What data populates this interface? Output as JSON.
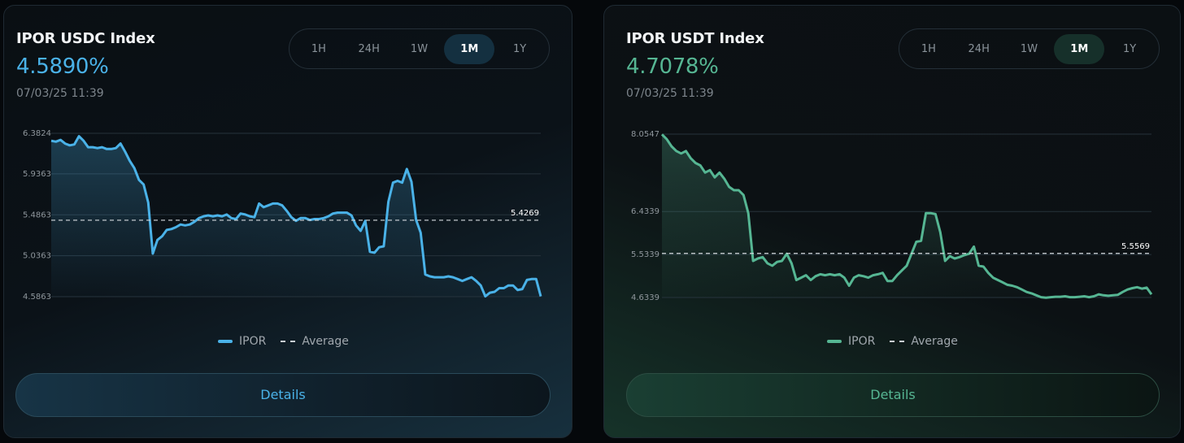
{
  "cards": [
    {
      "title": "IPOR USDC Index",
      "rate": "4.5890%",
      "timestamp": "07/03/25 11:39",
      "tabs": [
        "1H",
        "24H",
        "1W",
        "1M",
        "1Y"
      ],
      "active_tab": "1M",
      "legend": {
        "series": "IPOR",
        "average": "Average"
      },
      "details_label": "Details",
      "color": "#4ab2e8"
    },
    {
      "title": "IPOR USDT Index",
      "rate": "4.7078%",
      "timestamp": "07/03/25 11:39",
      "tabs": [
        "1H",
        "24H",
        "1W",
        "1M",
        "1Y"
      ],
      "active_tab": "1M",
      "legend": {
        "series": "IPOR",
        "average": "Average"
      },
      "details_label": "Details",
      "color": "#56b693"
    }
  ],
  "chart_data": [
    {
      "type": "line",
      "title": "IPOR USDC Index",
      "ylim": [
        4.5863,
        6.3824
      ],
      "yticks": [
        "6.3824",
        "5.9363",
        "5.4863",
        "5.0363",
        "4.5863"
      ],
      "average": 5.4269,
      "average_label": "5.4269",
      "series": [
        {
          "name": "IPOR",
          "color": "#4ab2e8",
          "values": [
            6.3,
            6.29,
            6.31,
            6.27,
            6.25,
            6.26,
            6.35,
            6.3,
            6.23,
            6.23,
            6.22,
            6.23,
            6.21,
            6.21,
            6.22,
            6.27,
            6.18,
            6.08,
            6.0,
            5.87,
            5.82,
            5.62,
            5.06,
            5.21,
            5.25,
            5.32,
            5.33,
            5.35,
            5.38,
            5.37,
            5.38,
            5.41,
            5.45,
            5.47,
            5.48,
            5.47,
            5.48,
            5.47,
            5.49,
            5.45,
            5.44,
            5.5,
            5.49,
            5.47,
            5.46,
            5.61,
            5.57,
            5.59,
            5.61,
            5.61,
            5.59,
            5.53,
            5.46,
            5.42,
            5.45,
            5.45,
            5.43,
            5.44,
            5.44,
            5.45,
            5.47,
            5.5,
            5.51,
            5.51,
            5.51,
            5.48,
            5.37,
            5.31,
            5.42,
            5.08,
            5.07,
            5.13,
            5.14,
            5.63,
            5.84,
            5.86,
            5.84,
            5.99,
            5.85,
            5.43,
            5.29,
            4.83,
            4.81,
            4.8,
            4.8,
            4.8,
            4.81,
            4.8,
            4.78,
            4.76,
            4.78,
            4.8,
            4.76,
            4.71,
            4.59,
            4.63,
            4.64,
            4.68,
            4.68,
            4.71,
            4.71,
            4.66,
            4.67,
            4.77,
            4.78,
            4.78,
            4.59
          ]
        }
      ]
    },
    {
      "type": "line",
      "title": "IPOR USDT Index",
      "ylim": [
        4.6339,
        8.0547
      ],
      "yticks": [
        "8.0547",
        "6.4339",
        "5.5339",
        "4.6339"
      ],
      "average": 5.5569,
      "average_label": "5.5569",
      "series": [
        {
          "name": "IPOR",
          "color": "#56b693",
          "values": [
            8.05,
            7.95,
            7.8,
            7.7,
            7.65,
            7.7,
            7.55,
            7.45,
            7.4,
            7.25,
            7.3,
            7.15,
            7.25,
            7.12,
            6.95,
            6.88,
            6.88,
            6.78,
            6.4,
            5.4,
            5.45,
            5.48,
            5.35,
            5.3,
            5.38,
            5.4,
            5.55,
            5.35,
            5.0,
            5.05,
            5.1,
            5.0,
            5.08,
            5.12,
            5.1,
            5.12,
            5.1,
            5.12,
            5.05,
            4.88,
            5.05,
            5.1,
            5.08,
            5.05,
            5.1,
            5.12,
            5.15,
            4.98,
            4.98,
            5.1,
            5.2,
            5.3,
            5.55,
            5.8,
            5.82,
            6.4,
            6.4,
            6.38,
            6.0,
            5.4,
            5.5,
            5.45,
            5.48,
            5.52,
            5.55,
            5.7,
            5.3,
            5.28,
            5.15,
            5.05,
            5.0,
            4.95,
            4.9,
            4.88,
            4.85,
            4.8,
            4.75,
            4.72,
            4.68,
            4.64,
            4.63,
            4.64,
            4.65,
            4.65,
            4.66,
            4.64,
            4.64,
            4.65,
            4.66,
            4.64,
            4.66,
            4.7,
            4.68,
            4.67,
            4.68,
            4.69,
            4.75,
            4.8,
            4.83,
            4.85,
            4.82,
            4.84,
            4.7
          ]
        }
      ]
    }
  ]
}
